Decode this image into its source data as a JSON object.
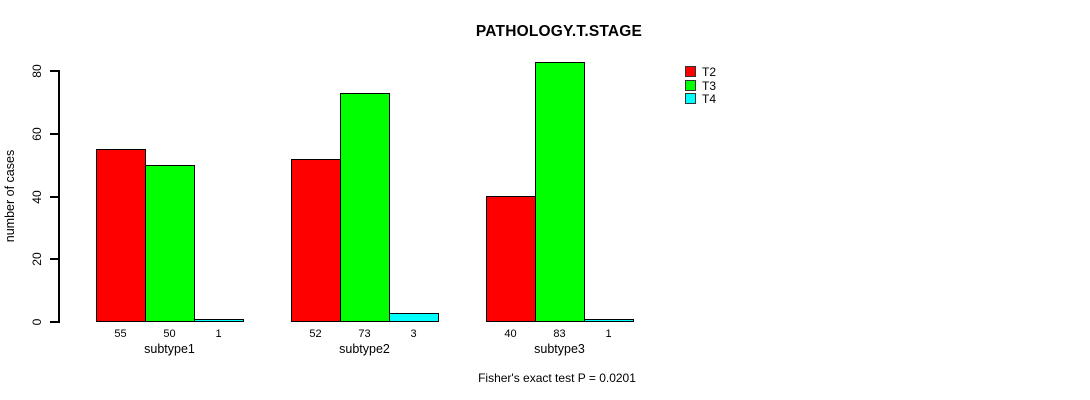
{
  "title": "PATHOLOGY.T.STAGE",
  "footer": "Fisher's exact test P = 0.0201",
  "chart_data": {
    "type": "bar",
    "title": "PATHOLOGY.T.STAGE",
    "categories": [
      "subtype1",
      "subtype2",
      "subtype3"
    ],
    "series": [
      {
        "name": "T2",
        "color": "#ff0000",
        "values": [
          55,
          52,
          40
        ]
      },
      {
        "name": "T3",
        "color": "#00ff00",
        "values": [
          50,
          73,
          83
        ]
      },
      {
        "name": "T4",
        "color": "#00ffff",
        "values": [
          1,
          3,
          1
        ]
      }
    ],
    "ylabel": "number of cases",
    "xlabel": "",
    "ylim": [
      0,
      80
    ],
    "yticks": [
      0,
      20,
      40,
      60,
      80
    ],
    "grid": false,
    "legend_position": "top-right",
    "bar_value_labels": [
      [
        "55",
        "50",
        "1"
      ],
      [
        "52",
        "73",
        "3"
      ],
      [
        "40",
        "83",
        "1"
      ]
    ],
    "annotation": "Fisher's exact test P = 0.0201"
  }
}
